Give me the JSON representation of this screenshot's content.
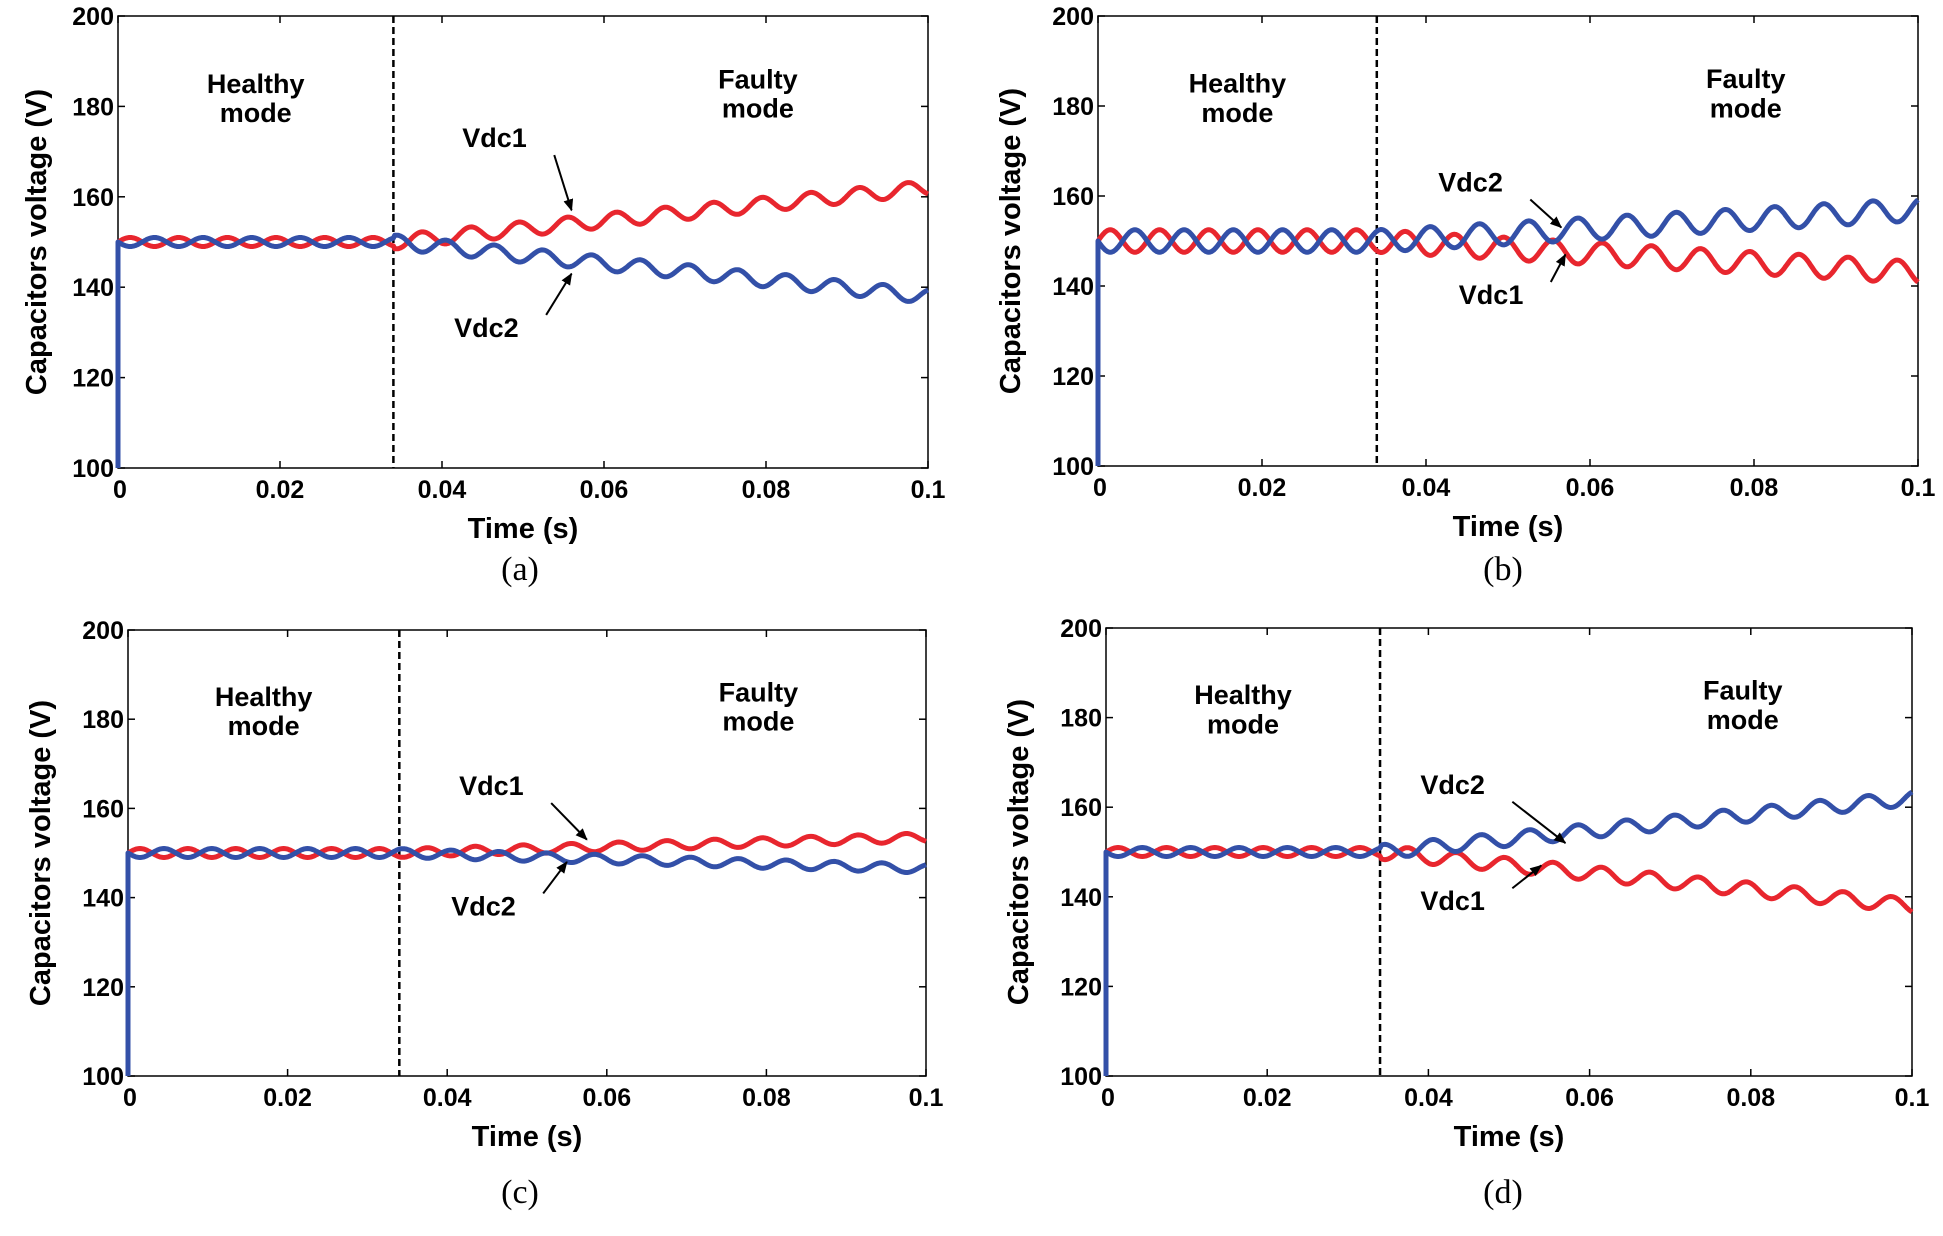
{
  "chart_data": [
    {
      "type": "line",
      "panel": "a",
      "caption": "(a)",
      "xlabel": "Time (s)",
      "ylabel": "Capacitors voltage (V)",
      "xlim": [
        0,
        0.1
      ],
      "ylim": [
        100,
        200
      ],
      "xticks": [
        0,
        0.02,
        0.04,
        0.06,
        0.08,
        0.1
      ],
      "xtick_labels": [
        "0",
        "0.02",
        "0.04",
        "0.06",
        "0.08",
        "0.1"
      ],
      "yticks": [
        100,
        120,
        140,
        160,
        180,
        200
      ],
      "ytick_labels": [
        "100",
        "120",
        "140",
        "160",
        "180",
        "200"
      ],
      "fault_time": 0.034,
      "region_labels": {
        "healthy": [
          "Healthy",
          "mode"
        ],
        "faulty": [
          "Faulty",
          "mode"
        ]
      },
      "series": [
        {
          "name": "Vdc1",
          "color": "#e8262e",
          "start": 150,
          "end": 162,
          "ripple_healthy": 1.0,
          "ripple_faulty": 1.6,
          "period": 0.006,
          "phase": 0
        },
        {
          "name": "Vdc2",
          "color": "#3350a8",
          "start": 150,
          "end": 138,
          "ripple_healthy": 1.0,
          "ripple_faulty": 1.6,
          "period": 0.006,
          "phase": 3.1416,
          "initial_rise": true
        }
      ],
      "annotations": [
        {
          "label": "Vdc1",
          "text_x": 0.0425,
          "text_y": 171,
          "arrow_x": 0.056,
          "arrow_y": 157
        },
        {
          "label": "Vdc2",
          "text_x": 0.0415,
          "text_y": 129,
          "arrow_x": 0.056,
          "arrow_y": 143
        }
      ]
    },
    {
      "type": "line",
      "panel": "b",
      "caption": "(b)",
      "xlabel": "Time (s)",
      "ylabel": "Capacitors voltage (V)",
      "xlim": [
        0,
        0.1
      ],
      "ylim": [
        100,
        200
      ],
      "xticks": [
        0,
        0.02,
        0.04,
        0.06,
        0.08,
        0.1
      ],
      "xtick_labels": [
        "0",
        "0.02",
        "0.04",
        "0.06",
        "0.08",
        "0.1"
      ],
      "yticks": [
        100,
        120,
        140,
        160,
        180,
        200
      ],
      "ytick_labels": [
        "100",
        "120",
        "140",
        "160",
        "180",
        "200"
      ],
      "fault_time": 0.034,
      "region_labels": {
        "healthy": [
          "Healthy",
          "mode"
        ],
        "faulty": [
          "Faulty",
          "mode"
        ]
      },
      "series": [
        {
          "name": "Vdc1",
          "color": "#e8262e",
          "start": 150,
          "end": 143,
          "ripple_healthy": 2.5,
          "ripple_faulty": 2.5,
          "period": 0.006,
          "phase": 0
        },
        {
          "name": "Vdc2",
          "color": "#3350a8",
          "start": 150,
          "end": 157,
          "ripple_healthy": 2.5,
          "ripple_faulty": 2.5,
          "period": 0.006,
          "phase": 3.1416,
          "initial_rise": true
        }
      ],
      "annotations": [
        {
          "label": "Vdc2",
          "text_x": 0.0415,
          "text_y": 161,
          "arrow_x": 0.0565,
          "arrow_y": 153
        },
        {
          "label": "Vdc1",
          "text_x": 0.044,
          "text_y": 136,
          "arrow_x": 0.057,
          "arrow_y": 147
        }
      ]
    },
    {
      "type": "line",
      "panel": "c",
      "caption": "(c)",
      "xlabel": "Time (s)",
      "ylabel": "Capacitors voltage (V)",
      "xlim": [
        0,
        0.1
      ],
      "ylim": [
        100,
        200
      ],
      "xticks": [
        0,
        0.02,
        0.04,
        0.06,
        0.08,
        0.1
      ],
      "xtick_labels": [
        "0",
        "0.02",
        "0.04",
        "0.06",
        "0.08",
        "0.1"
      ],
      "yticks": [
        100,
        120,
        140,
        160,
        180,
        200
      ],
      "ytick_labels": [
        "100",
        "120",
        "140",
        "160",
        "180",
        "200"
      ],
      "fault_time": 0.034,
      "region_labels": {
        "healthy": [
          "Healthy",
          "mode"
        ],
        "faulty": [
          "Faulty",
          "mode"
        ]
      },
      "series": [
        {
          "name": "Vdc1",
          "color": "#e8262e",
          "start": 150,
          "end": 153.5,
          "ripple_healthy": 1.0,
          "ripple_faulty": 1.0,
          "period": 0.006,
          "phase": 0
        },
        {
          "name": "Vdc2",
          "color": "#3350a8",
          "start": 150,
          "end": 146.5,
          "ripple_healthy": 1.0,
          "ripple_faulty": 1.0,
          "period": 0.006,
          "phase": 3.1416,
          "initial_rise": true
        }
      ],
      "annotations": [
        {
          "label": "Vdc1",
          "text_x": 0.0415,
          "text_y": 163,
          "arrow_x": 0.0575,
          "arrow_y": 153
        },
        {
          "label": "Vdc2",
          "text_x": 0.0405,
          "text_y": 136,
          "arrow_x": 0.055,
          "arrow_y": 148
        }
      ]
    },
    {
      "type": "line",
      "panel": "d",
      "caption": "(d)",
      "xlabel": "Time (s)",
      "ylabel": "Capacitors voltage (V)",
      "xlim": [
        0,
        0.1
      ],
      "ylim": [
        100,
        200
      ],
      "xticks": [
        0,
        0.02,
        0.04,
        0.06,
        0.08,
        0.1
      ],
      "xtick_labels": [
        "0",
        "0.02",
        "0.04",
        "0.06",
        "0.08",
        "0.1"
      ],
      "yticks": [
        100,
        120,
        140,
        160,
        180,
        200
      ],
      "ytick_labels": [
        "100",
        "120",
        "140",
        "160",
        "180",
        "200"
      ],
      "fault_time": 0.034,
      "region_labels": {
        "healthy": [
          "Healthy",
          "mode"
        ],
        "faulty": [
          "Faulty",
          "mode"
        ]
      },
      "series": [
        {
          "name": "Vdc1",
          "color": "#e8262e",
          "start": 150,
          "end": 138,
          "ripple_healthy": 1.0,
          "ripple_faulty": 1.6,
          "period": 0.006,
          "phase": 0
        },
        {
          "name": "Vdc2",
          "color": "#3350a8",
          "start": 150,
          "end": 162,
          "ripple_healthy": 1.0,
          "ripple_faulty": 1.6,
          "period": 0.006,
          "phase": 3.1416,
          "initial_rise": true
        }
      ],
      "annotations": [
        {
          "label": "Vdc2",
          "text_x": 0.039,
          "text_y": 163,
          "arrow_x": 0.057,
          "arrow_y": 152
        },
        {
          "label": "Vdc1",
          "text_x": 0.039,
          "text_y": 137,
          "arrow_x": 0.054,
          "arrow_y": 147
        }
      ]
    }
  ]
}
